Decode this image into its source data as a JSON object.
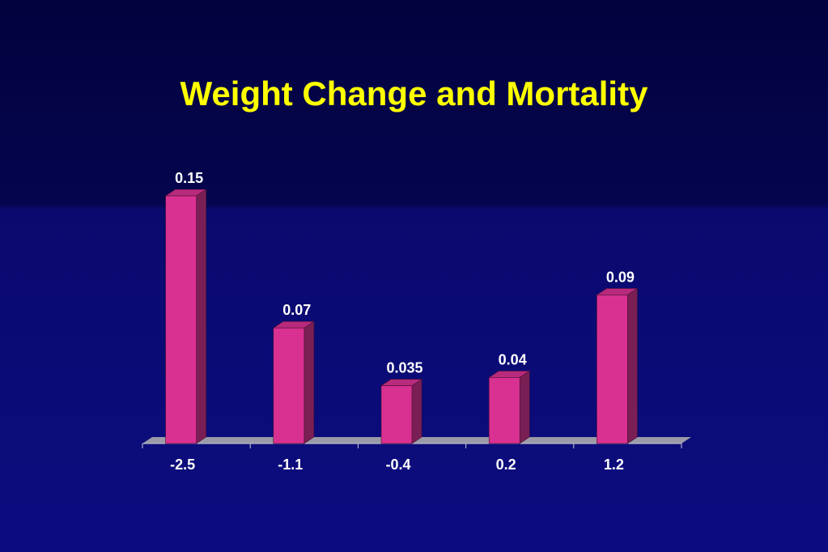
{
  "title": "Weight Change and Mortality",
  "colors": {
    "bar_front": "#d93191",
    "bar_side": "#7a1f55",
    "bar_top": "#b82a7c",
    "floor": "#9a9aa8",
    "title": "#ffff00",
    "text": "#ffffff"
  },
  "chart_data": {
    "type": "bar",
    "title": "Weight Change and Mortality",
    "xlabel": "",
    "ylabel": "",
    "categories": [
      "-2.5",
      "-1.1",
      "-0.4",
      "0.2",
      "1.2"
    ],
    "values": [
      0.15,
      0.07,
      0.035,
      0.04,
      0.09
    ],
    "value_labels": [
      "0.15",
      "0.07",
      "0.035",
      "0.04",
      "0.09"
    ],
    "ylim": [
      0,
      0.15
    ],
    "grid": false,
    "legend": "none",
    "style": "3d-column"
  }
}
